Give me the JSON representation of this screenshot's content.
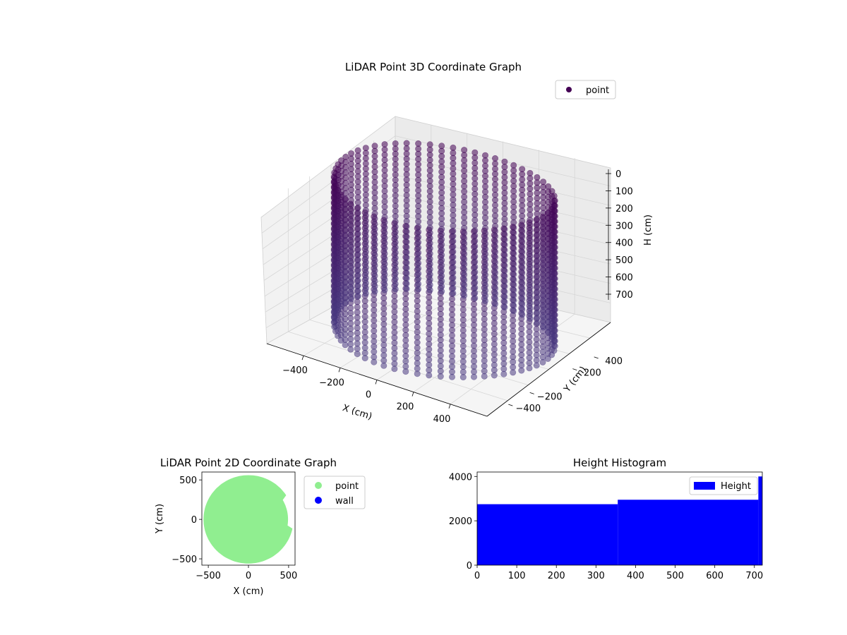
{
  "chart_data": [
    {
      "type": "scatter3d",
      "title": "LiDAR Point 3D Coordinate Graph",
      "xlabel": "X (cm)",
      "ylabel": "Y (cm)",
      "zlabel": "H (cm)",
      "xlim": [
        -600,
        600
      ],
      "ylim": [
        -600,
        600
      ],
      "zlim": [
        0,
        750
      ],
      "z_inverted": true,
      "xticks": [
        "−400",
        "−200",
        "0",
        "200",
        "400"
      ],
      "yticks": [
        "−400",
        "−200",
        "200",
        "400"
      ],
      "zticks": [
        "0",
        "100",
        "200",
        "300",
        "400",
        "500",
        "600",
        "700"
      ],
      "legend": {
        "entries": [
          "point"
        ],
        "placement": "upper-right"
      },
      "series": [
        {
          "name": "point",
          "color": "#440154",
          "shape": "cylindrical wall of points",
          "radius": 520,
          "h_range": [
            0,
            720
          ],
          "h_step": 25,
          "points_per_ring": 60
        }
      ],
      "grid": true
    },
    {
      "type": "scatter",
      "title": "LiDAR Point 2D Coordinate Graph",
      "xlabel": "X (cm)",
      "ylabel": "Y (cm)",
      "xlim": [
        -580,
        580
      ],
      "ylim": [
        -580,
        600
      ],
      "xticks": [
        "−500",
        "0",
        "500"
      ],
      "yticks": [
        "−500",
        "0",
        "500"
      ],
      "legend": {
        "entries": [
          {
            "label": "point",
            "color": "#90ee90"
          },
          {
            "label": "wall",
            "color": "#0000ff"
          }
        ],
        "placement": "outside-right"
      },
      "series": [
        {
          "name": "point",
          "color": "#90ee90",
          "shape": "filled disk",
          "radius": 560
        },
        {
          "name": "wall",
          "color": "#0000ff",
          "values": []
        }
      ],
      "grid": false
    },
    {
      "type": "histogram",
      "title": "Height Histogram",
      "xlabel": "",
      "ylabel": "",
      "xlim": [
        0,
        720
      ],
      "ylim": [
        0,
        4200
      ],
      "xticks": [
        "0",
        "100",
        "200",
        "300",
        "400",
        "500",
        "600",
        "700"
      ],
      "yticks": [
        "0",
        "2000",
        "4000"
      ],
      "legend": {
        "entries": [
          "Height"
        ],
        "placement": "upper-right"
      },
      "color": "#0000ff",
      "bins": [
        {
          "start": 0,
          "end": 355,
          "count": 2750
        },
        {
          "start": 355,
          "end": 710,
          "count": 2950
        },
        {
          "start": 710,
          "end": 720,
          "count": 4000
        }
      ],
      "grid": false
    }
  ]
}
